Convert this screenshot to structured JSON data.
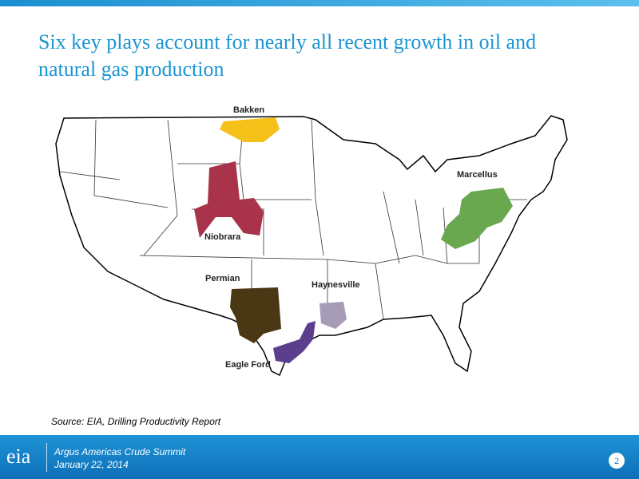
{
  "header": {
    "title_lines": [
      "Six key plays account for nearly all recent growth in oil and",
      "natural gas production"
    ]
  },
  "map": {
    "plays": [
      "Bakken",
      "Niobrara",
      "Permian",
      "Haynesville",
      "Eagle Ford",
      "Marcellus"
    ]
  },
  "source": "Source:  EIA, Drilling Productivity Report",
  "footer": {
    "logo": "eia",
    "event": "Argus Americas Crude Summit",
    "date": "January 22, 2014",
    "page": "2"
  }
}
